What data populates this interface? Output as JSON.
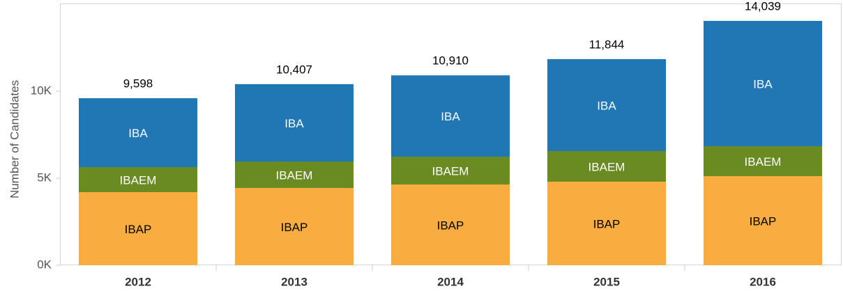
{
  "chart_data": {
    "type": "stacked_bar",
    "y_label": "Number of Candidates",
    "categories": [
      "2012",
      "2013",
      "2014",
      "2015",
      "2016"
    ],
    "series": [
      {
        "name": "IBAP",
        "color": "#f9ad41",
        "label_color": "#000000",
        "values": [
          4200,
          4440,
          4640,
          4800,
          5120
        ]
      },
      {
        "name": "IBAEM",
        "color": "#6a8b22",
        "label_color": "#ffffff",
        "values": [
          1440,
          1520,
          1600,
          1760,
          1720
        ]
      },
      {
        "name": "IBA",
        "color": "#2077b4",
        "label_color": "#ffffff",
        "values": [
          3958,
          4447,
          4670,
          5284,
          7199
        ]
      }
    ],
    "totals": {
      "values": [
        9598,
        10407,
        10910,
        11844,
        14039
      ],
      "value_labels": [
        "9,598",
        "10,407",
        "10,910",
        "11,844",
        "14,039"
      ]
    },
    "ylim": [
      0,
      15000
    ],
    "yticks": [
      {
        "value": 0,
        "label": "0K"
      },
      {
        "value": 5000,
        "label": "5K"
      },
      {
        "value": 10000,
        "label": "10K"
      }
    ],
    "grid": false
  }
}
